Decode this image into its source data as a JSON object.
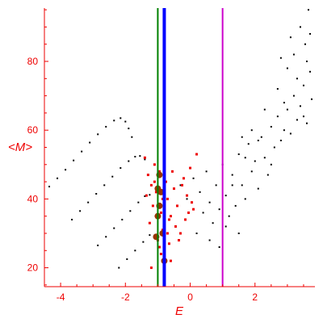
{
  "chart_data": {
    "type": "scatter",
    "title": "",
    "xlabel": "E",
    "ylabel": "<M>",
    "xlim": [
      -4.5,
      3.85
    ],
    "ylim": [
      14.5,
      95.5
    ],
    "xticks": [
      -4,
      -2,
      0,
      2
    ],
    "yticks": [
      20,
      40,
      60,
      80
    ],
    "x_tick_labels": [
      "-4",
      "-2",
      "0",
      "2"
    ],
    "y_tick_labels": [
      "20",
      "40",
      "60",
      "80"
    ],
    "grid": false,
    "axis_color": "#ee0000",
    "vertical_lines": [
      {
        "x": -1.0,
        "color": "#008000",
        "width": "thin"
      },
      {
        "x": -0.8,
        "color": "#0000ff",
        "width": "thick"
      },
      {
        "x": 1.0,
        "color": "#cc00cc",
        "width": "thin"
      }
    ],
    "series": [
      {
        "style": "small black dots",
        "color": "#000000",
        "points": [
          [
            -4.35,
            43.6
          ],
          [
            -4.1,
            46
          ],
          [
            -3.85,
            48.5
          ],
          [
            -3.6,
            51.2
          ],
          [
            -3.35,
            53.8
          ],
          [
            -3.1,
            56.4
          ],
          [
            -2.85,
            58.8
          ],
          [
            -2.6,
            61
          ],
          [
            -2.35,
            62.8
          ],
          [
            -2.15,
            63.5
          ],
          [
            -2.0,
            62.5
          ],
          [
            -1.9,
            60.5
          ],
          [
            -1.8,
            58
          ],
          [
            -3.65,
            34
          ],
          [
            -3.4,
            36.5
          ],
          [
            -3.15,
            39
          ],
          [
            -2.9,
            41.5
          ],
          [
            -2.65,
            44
          ],
          [
            -2.4,
            46.5
          ],
          [
            -2.15,
            49
          ],
          [
            -1.9,
            51
          ],
          [
            -1.7,
            52.3
          ],
          [
            -1.55,
            52.5
          ],
          [
            -1.4,
            51.5
          ],
          [
            -2.85,
            26.5
          ],
          [
            -2.6,
            29
          ],
          [
            -2.35,
            31.5
          ],
          [
            -2.1,
            34
          ],
          [
            -1.85,
            36.5
          ],
          [
            -1.6,
            39
          ],
          [
            -1.4,
            40.8
          ],
          [
            -1.25,
            41.2
          ],
          [
            -2.2,
            20
          ],
          [
            -1.95,
            22.5
          ],
          [
            -1.7,
            25
          ],
          [
            -1.45,
            27.5
          ],
          [
            -1.25,
            29.5
          ],
          [
            -0.3,
            44
          ],
          [
            -0.1,
            40
          ],
          [
            0.1,
            46
          ],
          [
            0.3,
            42
          ],
          [
            0.4,
            36
          ],
          [
            0.5,
            48
          ],
          [
            0.6,
            39
          ],
          [
            0.7,
            33
          ],
          [
            0.8,
            44
          ],
          [
            0.9,
            37
          ],
          [
            1.0,
            50
          ],
          [
            1.1,
            41
          ],
          [
            1.2,
            35
          ],
          [
            1.3,
            47
          ],
          [
            1.4,
            38
          ],
          [
            1.5,
            53
          ],
          [
            1.6,
            44
          ],
          [
            1.7,
            40
          ],
          [
            1.8,
            56
          ],
          [
            1.9,
            48
          ],
          [
            2.0,
            51
          ],
          [
            2.1,
            43
          ],
          [
            2.2,
            58
          ],
          [
            2.3,
            52
          ],
          [
            2.4,
            47
          ],
          [
            2.5,
            61
          ],
          [
            2.6,
            55
          ],
          [
            2.7,
            64
          ],
          [
            2.8,
            57
          ],
          [
            2.9,
            60
          ],
          [
            3.0,
            66
          ],
          [
            3.1,
            59
          ],
          [
            3.2,
            70
          ],
          [
            3.3,
            63
          ],
          [
            3.4,
            67
          ],
          [
            3.5,
            73
          ],
          [
            3.6,
            62
          ],
          [
            3.7,
            77
          ],
          [
            3.75,
            69
          ],
          [
            0.2,
            30
          ],
          [
            0.6,
            28
          ],
          [
            1.1,
            32
          ],
          [
            1.5,
            30
          ],
          [
            0.9,
            26
          ],
          [
            1.3,
            44
          ],
          [
            1.7,
            52
          ],
          [
            2.1,
            57
          ],
          [
            2.5,
            50
          ],
          [
            2.9,
            68
          ],
          [
            3.3,
            75
          ],
          [
            3.55,
            85
          ],
          [
            3.2,
            82
          ],
          [
            3.4,
            90
          ],
          [
            3.0,
            78
          ],
          [
            2.7,
            72
          ],
          [
            2.3,
            66
          ],
          [
            1.9,
            60
          ],
          [
            1.6,
            58
          ],
          [
            3.6,
            80
          ],
          [
            3.7,
            88
          ],
          [
            3.65,
            95
          ],
          [
            3.1,
            87
          ],
          [
            2.8,
            81
          ],
          [
            3.5,
            64
          ]
        ]
      },
      {
        "style": "red squares",
        "color": "#ee0000",
        "points": [
          [
            -1.4,
            52
          ],
          [
            -1.3,
            47
          ],
          [
            -1.2,
            44
          ],
          [
            -1.1,
            50
          ],
          [
            -1.15,
            38
          ],
          [
            -1.05,
            42
          ],
          [
            -0.95,
            48
          ],
          [
            -0.9,
            36
          ],
          [
            -0.85,
            31
          ],
          [
            -0.75,
            45
          ],
          [
            -0.7,
            40
          ],
          [
            -0.6,
            35
          ],
          [
            -0.5,
            43
          ],
          [
            -0.4,
            38
          ],
          [
            -0.3,
            30
          ],
          [
            -0.2,
            46
          ],
          [
            -0.1,
            41
          ],
          [
            0.0,
            49
          ],
          [
            0.1,
            37
          ],
          [
            0.2,
            53
          ],
          [
            -1.25,
            33
          ],
          [
            -1.0,
            28
          ],
          [
            -0.65,
            27
          ],
          [
            -0.45,
            32
          ],
          [
            -0.15,
            34
          ],
          [
            0.05,
            39
          ],
          [
            -1.35,
            41
          ],
          [
            -0.55,
            48
          ],
          [
            -0.25,
            44
          ],
          [
            -0.8,
            52
          ],
          [
            -1.2,
            20
          ],
          [
            -0.9,
            24
          ],
          [
            -0.6,
            22
          ],
          [
            -0.95,
            26
          ],
          [
            -0.7,
            30
          ],
          [
            -0.35,
            28
          ],
          [
            -0.05,
            36
          ],
          [
            -1.1,
            45
          ],
          [
            -0.85,
            40
          ],
          [
            -0.65,
            34
          ]
        ]
      },
      {
        "style": "large brown circles",
        "color": "#993300",
        "points": [
          [
            -1.0,
            43
          ],
          [
            -0.95,
            38
          ],
          [
            -1.05,
            29
          ],
          [
            -0.85,
            30
          ],
          [
            -0.8,
            22
          ],
          [
            -1.0,
            35
          ],
          [
            -0.95,
            47
          ],
          [
            -0.9,
            42
          ]
        ]
      }
    ]
  }
}
